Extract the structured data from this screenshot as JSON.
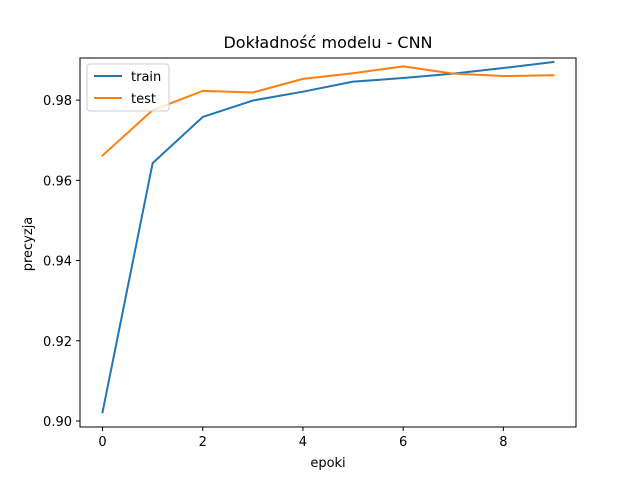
{
  "chart_data": {
    "type": "line",
    "title": "Dokładność modelu - CNN",
    "xlabel": "epoki",
    "ylabel": "precyzja",
    "xlim": [
      -0.45,
      9.45
    ],
    "ylim": [
      0.8985,
      0.9905
    ],
    "xticks": [
      0,
      2,
      4,
      6,
      8
    ],
    "yticks": [
      0.9,
      0.92,
      0.94,
      0.96,
      0.98
    ],
    "ytick_labels": [
      "0.90",
      "0.92",
      "0.94",
      "0.96",
      "0.98"
    ],
    "x": [
      0,
      1,
      2,
      3,
      4,
      5,
      6,
      7,
      8,
      9
    ],
    "series": [
      {
        "name": "train",
        "color": "#1f77b4",
        "values": [
          0.9022,
          0.9643,
          0.9758,
          0.9799,
          0.9821,
          0.9846,
          0.9855,
          0.9866,
          0.988,
          0.9895
        ]
      },
      {
        "name": "test",
        "color": "#ff7f0e",
        "values": [
          0.9662,
          0.9775,
          0.9823,
          0.9819,
          0.9853,
          0.9867,
          0.9884,
          0.9866,
          0.986,
          0.9862
        ]
      }
    ],
    "legend_position": "top-left",
    "grid": false
  }
}
